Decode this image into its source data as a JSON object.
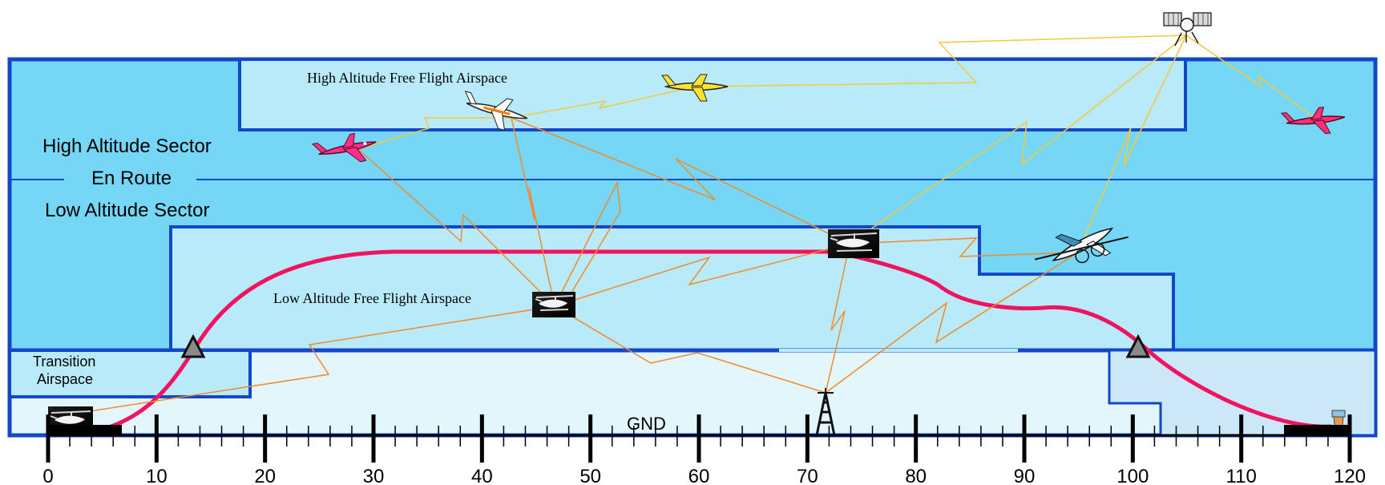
{
  "labels": {
    "high_free_flight": "High Altitude Free Flight Airspace",
    "high_sector": "High Altitude Sector",
    "en_route": "En Route",
    "low_sector": "Low Altitude Sector",
    "low_free_flight": "Low Altitude Free Flight Airspace",
    "transition_line1": "Transition",
    "transition_line2": "Airspace",
    "ground": "GND"
  },
  "axis": {
    "min": 0,
    "max": 120,
    "major_step": 10,
    "minor_step": 2,
    "tick_labels": [
      "0",
      "10",
      "20",
      "30",
      "40",
      "50",
      "60",
      "70",
      "80",
      "90",
      "100",
      "110",
      "120"
    ]
  },
  "colors": {
    "outer_border": "#1147c8",
    "sector_fill": "#76d6f6",
    "free_flight_fill": "#b9eafa",
    "lower_fill": "#e3f6fc",
    "right_lower_fill": "#cce8f8",
    "flight_path": "#f0145f",
    "ground_link": "#f28a2a",
    "satellite_link": "#f5c83a"
  },
  "icons": [
    "airplane-magenta-icon",
    "airplane-white-icon",
    "airplane-yellow-icon",
    "airplane-red-right-icon",
    "satellite-icon",
    "helicopter-photo-icon",
    "ground-station-tower-icon",
    "control-tower-icon",
    "waypoint-triangle-icon"
  ]
}
